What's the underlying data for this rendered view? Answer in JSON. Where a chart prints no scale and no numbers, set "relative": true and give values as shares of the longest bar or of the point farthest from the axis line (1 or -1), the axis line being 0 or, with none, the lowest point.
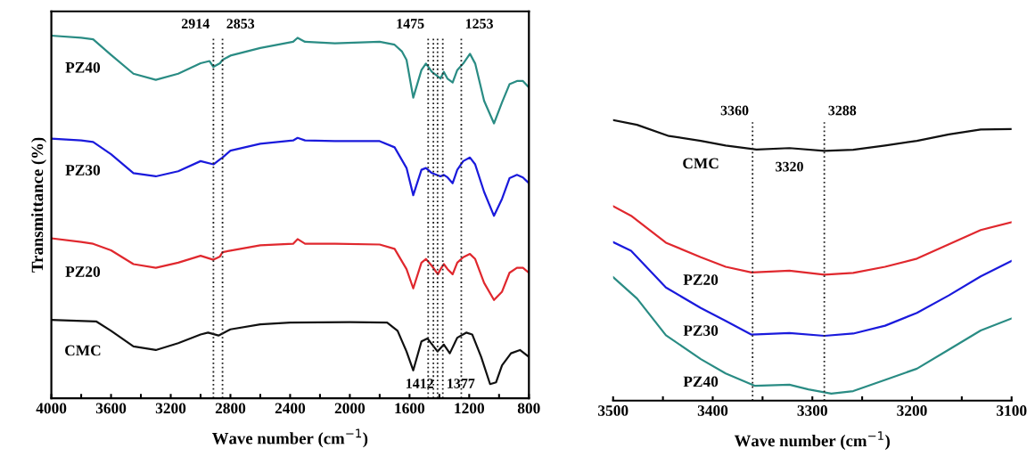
{
  "chart_data": [
    {
      "type": "line",
      "relative": true,
      "xlabel": "Wave number (cm$^{−1}$)",
      "ylabel": "Transmittance (%)",
      "xlim": [
        4000,
        800
      ],
      "xticks": [
        4000,
        {
          "value": 3800,
          "label": null
        },
        3600,
        {
          "value": 3400,
          "label": null
        },
        3200,
        {
          "value": 3000,
          "label": null
        },
        2800,
        {
          "value": 2600,
          "label": null
        },
        2400,
        {
          "value": 2200,
          "label": null
        },
        2000,
        {
          "value": 1800,
          "label": null
        },
        1600,
        {
          "value": 1400,
          "label": null
        },
        1200,
        {
          "value": 1000,
          "label": null
        },
        800
      ],
      "grid": false,
      "legend": false,
      "marker": "none",
      "line_style": "solid",
      "tick_labels": "x",
      "ref_lines": [
        {
          "axis": "x",
          "value": 2914,
          "label": "2914",
          "line_style": "dotted",
          "color": "#222222"
        },
        {
          "axis": "x",
          "value": 2853,
          "label": "2853",
          "line_style": "dotted",
          "color": "#222222"
        },
        {
          "axis": "x",
          "value": 1475,
          "label": "1475",
          "line_style": "dotted",
          "color": "#222222"
        },
        {
          "axis": "x",
          "value": 1253,
          "label": "1253",
          "line_style": "dotted",
          "color": "#222222"
        },
        {
          "axis": "x",
          "value": 1412,
          "label": "1412",
          "line_style": "dotted",
          "color": "#222222"
        },
        {
          "axis": "x",
          "value": 1377,
          "label": "1377",
          "line_style": "dotted",
          "color": "#222222"
        },
        {
          "axis": "x",
          "value": 1440,
          "line_style": "dotted",
          "color": "#222222"
        }
      ],
      "series": [
        {
          "name": "PZ40",
          "color": "#2a8c84",
          "x": [
            4000,
            3800,
            3720,
            3600,
            3450,
            3300,
            3150,
            3000,
            2940,
            2914,
            2870,
            2853,
            2800,
            2600,
            2380,
            2350,
            2300,
            2100,
            1800,
            1700,
            1650,
            1620,
            1575,
            1520,
            1490,
            1450,
            1392,
            1370,
            1345,
            1311,
            1280,
            1240,
            1195,
            1160,
            1100,
            1034,
            980,
            930,
            880,
            840,
            800
          ],
          "values": [
            1.0,
            0.994,
            0.99,
            0.947,
            0.895,
            0.878,
            0.895,
            0.924,
            0.93,
            0.914,
            0.924,
            0.933,
            0.945,
            0.966,
            0.983,
            0.994,
            0.983,
            0.979,
            0.983,
            0.975,
            0.956,
            0.933,
            0.829,
            0.905,
            0.923,
            0.9,
            0.882,
            0.9,
            0.881,
            0.871,
            0.905,
            0.923,
            0.95,
            0.923,
            0.82,
            0.758,
            0.816,
            0.866,
            0.875,
            0.875,
            0.857
          ]
        },
        {
          "name": "PZ30",
          "color": "#1a1adc",
          "x": [
            4000,
            3800,
            3720,
            3600,
            3450,
            3300,
            3150,
            3000,
            2914,
            2870,
            2853,
            2800,
            2600,
            2380,
            2350,
            2300,
            2100,
            1800,
            1700,
            1620,
            1575,
            1520,
            1490,
            1450,
            1392,
            1370,
            1345,
            1311,
            1280,
            1240,
            1195,
            1160,
            1100,
            1034,
            980,
            930,
            880,
            840,
            800
          ],
          "values": [
            0.716,
            0.711,
            0.707,
            0.673,
            0.621,
            0.612,
            0.626,
            0.654,
            0.645,
            0.659,
            0.664,
            0.683,
            0.702,
            0.711,
            0.718,
            0.711,
            0.709,
            0.709,
            0.692,
            0.635,
            0.56,
            0.63,
            0.635,
            0.621,
            0.612,
            0.616,
            0.609,
            0.593,
            0.63,
            0.654,
            0.664,
            0.645,
            0.569,
            0.503,
            0.55,
            0.607,
            0.616,
            0.609,
            0.593
          ]
        },
        {
          "name": "PZ20",
          "color": "#e0282e",
          "x": [
            4000,
            3800,
            3720,
            3600,
            3450,
            3300,
            3150,
            3000,
            2914,
            2870,
            2853,
            2800,
            2600,
            2380,
            2350,
            2300,
            2100,
            1800,
            1700,
            1620,
            1575,
            1520,
            1490,
            1450,
            1410,
            1392,
            1370,
            1345,
            1311,
            1280,
            1240,
            1195,
            1160,
            1100,
            1034,
            980,
            930,
            880,
            840,
            800
          ],
          "values": [
            0.441,
            0.431,
            0.426,
            0.408,
            0.37,
            0.36,
            0.374,
            0.393,
            0.382,
            0.391,
            0.403,
            0.407,
            0.422,
            0.426,
            0.439,
            0.426,
            0.426,
            0.424,
            0.412,
            0.356,
            0.303,
            0.374,
            0.384,
            0.365,
            0.342,
            0.356,
            0.37,
            0.356,
            0.342,
            0.374,
            0.389,
            0.398,
            0.384,
            0.318,
            0.271,
            0.294,
            0.346,
            0.36,
            0.36,
            0.346
          ]
        },
        {
          "name": "CMC",
          "color": "#111111",
          "x": [
            4000,
            3700,
            3600,
            3450,
            3300,
            3150,
            3000,
            2950,
            2880,
            2800,
            2600,
            2400,
            2000,
            1750,
            1680,
            1620,
            1575,
            1520,
            1480,
            1412,
            1370,
            1330,
            1280,
            1220,
            1180,
            1120,
            1060,
            1020,
            980,
            920,
            860,
            800
          ],
          "values": [
            0.216,
            0.212,
            0.186,
            0.143,
            0.133,
            0.152,
            0.176,
            0.181,
            0.173,
            0.19,
            0.204,
            0.209,
            0.21,
            0.209,
            0.186,
            0.129,
            0.077,
            0.157,
            0.165,
            0.129,
            0.148,
            0.124,
            0.167,
            0.181,
            0.176,
            0.114,
            0.039,
            0.044,
            0.091,
            0.124,
            0.133,
            0.114
          ]
        }
      ]
    },
    {
      "type": "line",
      "relative": true,
      "xlabel": "Wave number (cm$^{−1}$)",
      "xlim": [
        3500,
        3100
      ],
      "xticks": [
        3500,
        {
          "value": 3450,
          "label": null
        },
        3400,
        {
          "value": 3350,
          "label": null
        },
        3300,
        {
          "value": 3250,
          "label": null
        },
        3200,
        {
          "value": 3150,
          "label": null
        },
        3100
      ],
      "grid": false,
      "legend": false,
      "marker": "none",
      "line_style": "solid",
      "tick_labels": "x",
      "ref_lines": [
        {
          "axis": "x",
          "value": 3360,
          "label": "3360",
          "line_style": "dotted",
          "color": "#222222"
        },
        {
          "axis": "x",
          "value": 3288,
          "label": "3288",
          "line_style": "dotted",
          "color": "#222222"
        }
      ],
      "annotations": [
        {
          "text": "3320",
          "x": 3323,
          "y": 0.9
        }
      ],
      "series": [
        {
          "name": "CMC",
          "color": "#111111",
          "x": [
            3500,
            3476,
            3444,
            3412,
            3387,
            3356,
            3323,
            3288,
            3259,
            3227,
            3195,
            3163,
            3131,
            3100
          ],
          "values": [
            1.0,
            0.983,
            0.943,
            0.926,
            0.909,
            0.895,
            0.9,
            0.89,
            0.894,
            0.909,
            0.926,
            0.949,
            0.966,
            0.968
          ]
        },
        {
          "name": "PZ20",
          "color": "#e0282e",
          "x": [
            3500,
            3482,
            3447,
            3412,
            3387,
            3361,
            3323,
            3288,
            3259,
            3227,
            3195,
            3163,
            3131,
            3100
          ],
          "values": [
            0.693,
            0.659,
            0.563,
            0.511,
            0.477,
            0.457,
            0.463,
            0.449,
            0.455,
            0.477,
            0.506,
            0.557,
            0.608,
            0.636
          ]
        },
        {
          "name": "PZ30",
          "color": "#1a1adc",
          "x": [
            3500,
            3482,
            3447,
            3412,
            3387,
            3361,
            3323,
            3288,
            3259,
            3227,
            3195,
            3163,
            3131,
            3100
          ],
          "values": [
            0.565,
            0.534,
            0.403,
            0.33,
            0.284,
            0.235,
            0.241,
            0.231,
            0.239,
            0.267,
            0.313,
            0.375,
            0.443,
            0.498
          ]
        },
        {
          "name": "PZ40",
          "color": "#2a8c84",
          "x": [
            3500,
            3476,
            3447,
            3412,
            3387,
            3358,
            3323,
            3304,
            3281,
            3259,
            3227,
            3195,
            3163,
            3131,
            3100
          ],
          "values": [
            0.44,
            0.364,
            0.233,
            0.148,
            0.097,
            0.053,
            0.057,
            0.04,
            0.025,
            0.034,
            0.074,
            0.114,
            0.182,
            0.25,
            0.293
          ]
        }
      ]
    }
  ]
}
